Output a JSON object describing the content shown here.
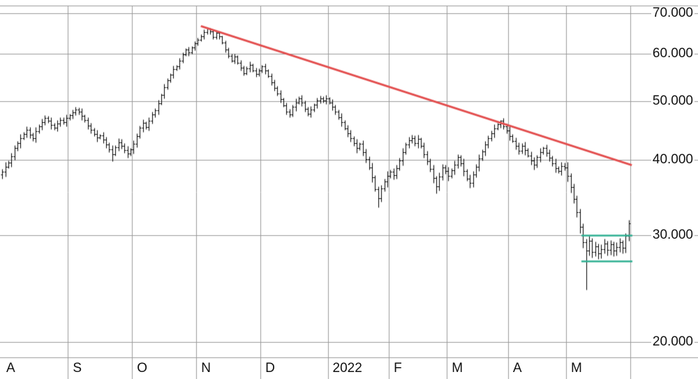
{
  "chart_data": {
    "type": "bar",
    "style": "ohlc-bar-chart",
    "y_axis": {
      "scale": "log",
      "tick_prices": [
        70,
        60,
        50,
        40,
        30,
        20
      ],
      "tick_labels": [
        "70.000",
        "60.000",
        "50.000",
        "40.000",
        "30.000",
        "20.000"
      ],
      "top_price": 72,
      "bottom_price": 18.85
    },
    "x_axis": {
      "months": [
        {
          "label": "A",
          "start": 0
        },
        {
          "label": "S",
          "start": 22
        },
        {
          "label": "O",
          "start": 43
        },
        {
          "label": "N",
          "start": 64
        },
        {
          "label": "D",
          "start": 85
        },
        {
          "label": "2022",
          "start": 107
        },
        {
          "label": "F",
          "start": 127
        },
        {
          "label": "M",
          "start": 146
        },
        {
          "label": "A",
          "start": 166
        },
        {
          "label": "M",
          "start": 185
        }
      ],
      "end_index": 206
    },
    "bars": [
      [
        37.8,
        38.6,
        37.2,
        38.2
      ],
      [
        38.2,
        39.7,
        37.5,
        39.0
      ],
      [
        39.0,
        39.9,
        38.7,
        39.6
      ],
      [
        39.6,
        41.1,
        39.0,
        40.5
      ],
      [
        40.5,
        42.3,
        40.0,
        41.8
      ],
      [
        41.8,
        43.0,
        41.4,
        42.6
      ],
      [
        42.6,
        44.2,
        41.9,
        43.5
      ],
      [
        43.5,
        44.5,
        43.2,
        44.2
      ],
      [
        44.2,
        45.4,
        43.6,
        44.8
      ],
      [
        44.8,
        45.3,
        43.5,
        44.0
      ],
      [
        44.0,
        44.4,
        43.0,
        43.4
      ],
      [
        43.4,
        45.3,
        42.7,
        44.6
      ],
      [
        44.6,
        45.8,
        44.3,
        45.5
      ],
      [
        45.5,
        46.8,
        44.9,
        46.2
      ],
      [
        46.2,
        47.4,
        45.7,
        46.9
      ],
      [
        46.9,
        47.3,
        46.0,
        46.4
      ],
      [
        46.4,
        47.1,
        45.0,
        45.7
      ],
      [
        45.7,
        46.0,
        44.9,
        45.2
      ],
      [
        45.2,
        46.5,
        44.6,
        45.9
      ],
      [
        45.9,
        47.1,
        45.4,
        46.6
      ],
      [
        46.6,
        47.0,
        45.8,
        46.2
      ],
      [
        46.2,
        47.6,
        45.5,
        46.9
      ],
      [
        46.9,
        47.7,
        46.6,
        47.4
      ],
      [
        47.4,
        48.5,
        46.8,
        47.9
      ],
      [
        47.9,
        48.9,
        47.4,
        48.4
      ],
      [
        48.4,
        48.8,
        47.6,
        48.0
      ],
      [
        48.0,
        48.7,
        46.6,
        47.3
      ],
      [
        47.3,
        47.6,
        46.2,
        46.5
      ],
      [
        46.5,
        47.1,
        45.0,
        45.6
      ],
      [
        45.6,
        46.1,
        44.3,
        44.8
      ],
      [
        44.8,
        45.2,
        43.8,
        44.2
      ],
      [
        44.2,
        44.9,
        42.9,
        43.6
      ],
      [
        43.6,
        44.2,
        43.3,
        43.9
      ],
      [
        43.9,
        44.5,
        42.6,
        43.2
      ],
      [
        43.2,
        43.7,
        41.9,
        42.4
      ],
      [
        42.4,
        42.8,
        41.2,
        41.6
      ],
      [
        41.6,
        42.3,
        39.8,
        40.9
      ],
      [
        40.9,
        42.3,
        40.6,
        42.0
      ],
      [
        42.0,
        43.4,
        41.4,
        42.8
      ],
      [
        42.8,
        43.3,
        41.7,
        42.2
      ],
      [
        42.2,
        42.6,
        41.1,
        41.5
      ],
      [
        41.5,
        42.2,
        40.3,
        41.0
      ],
      [
        41.0,
        41.9,
        40.7,
        41.6
      ],
      [
        41.6,
        43.1,
        41.0,
        42.5
      ],
      [
        42.5,
        44.3,
        42.0,
        43.8
      ],
      [
        43.8,
        45.6,
        43.4,
        45.2
      ],
      [
        45.2,
        46.7,
        44.5,
        46.0
      ],
      [
        46.0,
        46.3,
        45.0,
        45.3
      ],
      [
        45.3,
        47.0,
        44.7,
        46.4
      ],
      [
        46.4,
        48.0,
        45.9,
        47.5
      ],
      [
        47.5,
        48.7,
        47.1,
        48.3
      ],
      [
        48.3,
        50.3,
        47.6,
        49.6
      ],
      [
        49.6,
        51.5,
        49.3,
        51.2
      ],
      [
        51.2,
        53.4,
        50.6,
        52.8
      ],
      [
        52.8,
        54.6,
        52.3,
        54.1
      ],
      [
        54.1,
        55.7,
        53.7,
        55.3
      ],
      [
        55.3,
        57.3,
        54.6,
        56.6
      ],
      [
        56.6,
        57.5,
        56.3,
        57.2
      ],
      [
        57.2,
        59.0,
        56.6,
        58.4
      ],
      [
        58.4,
        60.3,
        57.9,
        59.8
      ],
      [
        59.8,
        61.3,
        59.4,
        60.9
      ],
      [
        60.9,
        61.6,
        59.5,
        60.2
      ],
      [
        60.2,
        61.7,
        59.9,
        61.4
      ],
      [
        61.4,
        62.9,
        60.8,
        62.3
      ],
      [
        62.3,
        63.7,
        61.8,
        63.2
      ],
      [
        63.2,
        64.5,
        62.8,
        64.1
      ],
      [
        64.1,
        65.7,
        63.4,
        65.0
      ],
      [
        65.0,
        66.0,
        64.6,
        65.9
      ],
      [
        65.9,
        66.1,
        64.6,
        65.2
      ],
      [
        65.2,
        65.7,
        63.3,
        63.8
      ],
      [
        63.8,
        65.3,
        63.4,
        64.9
      ],
      [
        64.9,
        65.2,
        63.3,
        64.0
      ],
      [
        64.0,
        64.3,
        62.2,
        62.5
      ],
      [
        62.5,
        63.1,
        60.3,
        60.9
      ],
      [
        60.9,
        61.4,
        59.0,
        59.5
      ],
      [
        59.5,
        59.9,
        58.0,
        58.4
      ],
      [
        58.4,
        60.0,
        57.7,
        59.3
      ],
      [
        59.3,
        59.6,
        57.6,
        57.9
      ],
      [
        57.9,
        58.5,
        56.2,
        56.8
      ],
      [
        56.8,
        57.3,
        55.2,
        55.7
      ],
      [
        55.7,
        57.1,
        55.3,
        56.7
      ],
      [
        56.7,
        58.2,
        56.0,
        57.5
      ],
      [
        57.5,
        57.8,
        56.0,
        56.3
      ],
      [
        56.3,
        56.9,
        54.9,
        55.5
      ],
      [
        55.5,
        56.7,
        55.0,
        56.2
      ],
      [
        56.2,
        57.5,
        55.8,
        57.1
      ],
      [
        57.1,
        57.8,
        55.5,
        56.2
      ],
      [
        56.2,
        56.5,
        54.7,
        55.0
      ],
      [
        55.0,
        55.6,
        53.2,
        53.8
      ],
      [
        53.8,
        54.3,
        52.1,
        52.6
      ],
      [
        52.6,
        53.0,
        51.1,
        51.5
      ],
      [
        51.5,
        52.2,
        49.7,
        50.4
      ],
      [
        50.4,
        50.7,
        48.9,
        49.2
      ],
      [
        49.2,
        49.8,
        47.5,
        48.1
      ],
      [
        48.1,
        48.6,
        47.1,
        47.6
      ],
      [
        47.6,
        49.3,
        47.2,
        48.9
      ],
      [
        48.9,
        50.5,
        48.2,
        49.8
      ],
      [
        49.8,
        50.9,
        49.5,
        50.6
      ],
      [
        50.6,
        51.2,
        49.1,
        49.7
      ],
      [
        49.7,
        50.2,
        48.1,
        48.6
      ],
      [
        48.6,
        49.0,
        47.3,
        47.7
      ],
      [
        47.7,
        49.1,
        47.0,
        48.4
      ],
      [
        48.4,
        49.6,
        48.1,
        49.3
      ],
      [
        49.3,
        50.7,
        48.7,
        50.1
      ],
      [
        50.1,
        51.1,
        49.6,
        50.6
      ],
      [
        50.6,
        51.0,
        49.8,
        50.2
      ],
      [
        50.2,
        51.2,
        49.5,
        50.5
      ],
      [
        50.5,
        50.8,
        49.5,
        49.8
      ],
      [
        49.8,
        50.4,
        48.3,
        48.9
      ],
      [
        48.9,
        49.4,
        47.5,
        48.0
      ],
      [
        48.0,
        48.4,
        46.7,
        47.1
      ],
      [
        47.1,
        47.8,
        45.5,
        46.2
      ],
      [
        46.2,
        46.5,
        44.8,
        45.1
      ],
      [
        45.1,
        45.7,
        43.7,
        44.3
      ],
      [
        44.3,
        44.8,
        42.9,
        43.4
      ],
      [
        43.4,
        43.8,
        42.2,
        42.6
      ],
      [
        42.6,
        43.3,
        41.1,
        41.8
      ],
      [
        41.8,
        42.8,
        41.5,
        42.5
      ],
      [
        42.5,
        43.1,
        40.6,
        41.2
      ],
      [
        41.2,
        41.7,
        39.6,
        40.1
      ],
      [
        40.1,
        40.5,
        38.5,
        38.9
      ],
      [
        38.9,
        39.6,
        36.7,
        37.4
      ],
      [
        37.4,
        37.7,
        35.5,
        35.8
      ],
      [
        35.8,
        36.2,
        33.4,
        34.6
      ],
      [
        34.6,
        36.4,
        34.1,
        35.9
      ],
      [
        35.9,
        37.2,
        35.5,
        36.8
      ],
      [
        36.8,
        38.3,
        36.1,
        37.6
      ],
      [
        37.6,
        38.5,
        37.3,
        38.2
      ],
      [
        38.2,
        38.8,
        37.1,
        37.7
      ],
      [
        37.7,
        39.3,
        37.2,
        38.8
      ],
      [
        38.8,
        40.3,
        38.4,
        39.9
      ],
      [
        39.9,
        41.9,
        39.2,
        41.2
      ],
      [
        41.2,
        42.7,
        40.9,
        42.4
      ],
      [
        42.4,
        43.7,
        41.8,
        43.1
      ],
      [
        43.1,
        44.0,
        42.6,
        43.5
      ],
      [
        43.5,
        43.9,
        42.2,
        42.6
      ],
      [
        42.6,
        44.0,
        41.9,
        43.3
      ],
      [
        43.3,
        43.6,
        41.9,
        42.2
      ],
      [
        42.2,
        42.8,
        40.3,
        40.9
      ],
      [
        40.9,
        41.4,
        39.3,
        39.8
      ],
      [
        39.8,
        40.2,
        38.2,
        38.6
      ],
      [
        38.6,
        39.3,
        36.6,
        37.3
      ],
      [
        37.3,
        37.6,
        35.2,
        36.2
      ],
      [
        36.2,
        38.1,
        35.6,
        37.5
      ],
      [
        37.5,
        39.4,
        37.0,
        38.9
      ],
      [
        38.9,
        39.3,
        37.9,
        38.3
      ],
      [
        38.3,
        39.0,
        36.9,
        37.6
      ],
      [
        37.6,
        38.7,
        37.3,
        38.4
      ],
      [
        38.4,
        39.9,
        37.8,
        39.3
      ],
      [
        39.3,
        40.9,
        38.8,
        40.4
      ],
      [
        40.4,
        40.8,
        39.1,
        39.5
      ],
      [
        39.5,
        40.2,
        37.6,
        38.3
      ],
      [
        38.3,
        38.6,
        36.9,
        37.2
      ],
      [
        37.2,
        37.8,
        36.0,
        36.6
      ],
      [
        36.6,
        38.3,
        36.1,
        37.8
      ],
      [
        37.8,
        39.4,
        37.4,
        39.0
      ],
      [
        39.0,
        40.9,
        38.3,
        40.2
      ],
      [
        40.2,
        41.6,
        39.9,
        41.3
      ],
      [
        41.3,
        43.0,
        40.7,
        42.4
      ],
      [
        42.4,
        43.9,
        41.9,
        43.4
      ],
      [
        43.4,
        44.7,
        43.0,
        44.3
      ],
      [
        44.3,
        45.8,
        43.6,
        45.1
      ],
      [
        45.1,
        46.1,
        44.8,
        45.8
      ],
      [
        45.8,
        46.6,
        45.2,
        46.4
      ],
      [
        46.4,
        46.9,
        45.0,
        45.5
      ],
      [
        45.5,
        45.9,
        44.3,
        44.7
      ],
      [
        44.7,
        45.4,
        43.1,
        43.8
      ],
      [
        43.8,
        44.1,
        42.7,
        43.0
      ],
      [
        43.0,
        43.6,
        41.6,
        42.2
      ],
      [
        42.2,
        42.7,
        40.9,
        41.4
      ],
      [
        41.4,
        42.6,
        41.0,
        42.2
      ],
      [
        42.2,
        42.9,
        40.8,
        41.5
      ],
      [
        41.5,
        41.8,
        40.4,
        40.7
      ],
      [
        40.7,
        41.3,
        39.3,
        39.9
      ],
      [
        39.9,
        40.4,
        38.5,
        39.3
      ],
      [
        39.3,
        40.8,
        38.9,
        40.4
      ],
      [
        40.4,
        41.9,
        39.7,
        41.2
      ],
      [
        41.2,
        42.1,
        40.9,
        41.8
      ],
      [
        41.8,
        42.4,
        40.5,
        41.1
      ],
      [
        41.1,
        41.6,
        39.8,
        40.3
      ],
      [
        40.3,
        40.7,
        39.1,
        39.5
      ],
      [
        39.5,
        40.2,
        38.1,
        38.8
      ],
      [
        38.8,
        39.1,
        38.0,
        38.3
      ],
      [
        38.3,
        39.7,
        37.7,
        39.1
      ],
      [
        39.1,
        39.6,
        38.4,
        38.9
      ],
      [
        38.9,
        39.7,
        36.8,
        37.6
      ],
      [
        37.6,
        38.0,
        35.3,
        36.1
      ],
      [
        36.1,
        36.5,
        33.9,
        34.5
      ],
      [
        34.5,
        34.9,
        32.2,
        32.8
      ],
      [
        32.8,
        33.2,
        30.3,
        31.0
      ],
      [
        31.0,
        31.4,
        28.6,
        29.2
      ],
      [
        29.2,
        29.6,
        24.4,
        28.3
      ],
      [
        28.3,
        29.9,
        27.8,
        29.4
      ],
      [
        29.4,
        29.7,
        27.6,
        28.2
      ],
      [
        28.2,
        29.3,
        27.7,
        28.8
      ],
      [
        28.8,
        29.1,
        27.4,
        28.0
      ],
      [
        28.0,
        29.0,
        27.5,
        28.5
      ],
      [
        28.5,
        29.6,
        28.0,
        29.1
      ],
      [
        29.1,
        29.4,
        27.8,
        28.4
      ],
      [
        28.4,
        29.5,
        27.9,
        29.0
      ],
      [
        29.0,
        29.3,
        27.7,
        28.3
      ],
      [
        28.3,
        29.2,
        27.8,
        28.7
      ],
      [
        28.7,
        29.7,
        28.2,
        29.2
      ],
      [
        29.2,
        29.5,
        28.0,
        28.6
      ],
      [
        28.6,
        30.3,
        28.1,
        29.9
      ],
      [
        29.9,
        31.8,
        29.4,
        31.4
      ]
    ],
    "annotations": {
      "trendline": {
        "color": "#e34e4e",
        "from": {
          "index": 65,
          "price": 66.6
        },
        "to": {
          "index": 206,
          "price": 39.2
        }
      },
      "support_resistance": [
        {
          "color": "#2fb093",
          "price": 30.0,
          "from_index": 190,
          "to_index": 207
        },
        {
          "color": "#2fb093",
          "price": 27.2,
          "from_index": 190,
          "to_index": 207
        }
      ]
    },
    "legend": "none",
    "grid": "on",
    "colors": {
      "background": "#ffffff",
      "grid": "#9b9b9b",
      "bar": "#000000",
      "label": "#111111"
    }
  }
}
